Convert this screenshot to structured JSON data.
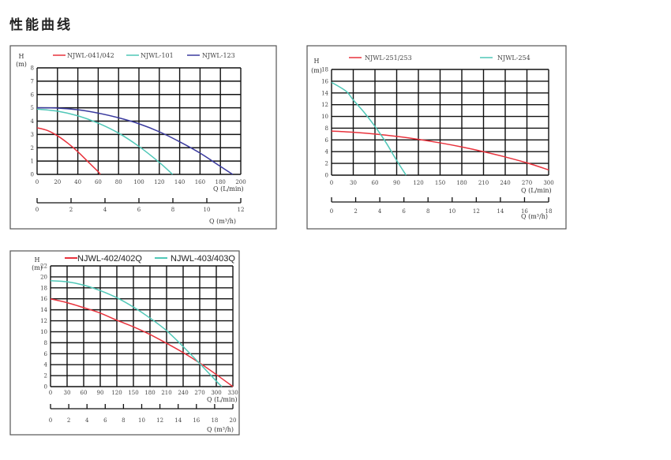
{
  "page_title": "性能曲线",
  "colors": {
    "red": "#e8323c",
    "teal": "#4fc7b7",
    "blue": "#3a3a9e"
  },
  "chart_data": [
    {
      "type": "line",
      "ylabel": "H",
      "yunit": "(m)",
      "xlabel": "Q  (L/min)",
      "x2label": "Q  (m³/h)",
      "xlim": [
        0,
        200
      ],
      "xstep": 20,
      "ylim": [
        0,
        8
      ],
      "ystep": 1,
      "x2lim": [
        0,
        12
      ],
      "x2step": 2,
      "grid": true,
      "legend": "top",
      "series": [
        {
          "name": "NJWL-041/042",
          "color": "#e8323c",
          "x": [
            0,
            10,
            20,
            30,
            40,
            50,
            60,
            62
          ],
          "y": [
            3.5,
            3.3,
            2.9,
            2.35,
            1.7,
            0.95,
            0.2,
            0
          ]
        },
        {
          "name": "NJWL-101",
          "color": "#4fc7b7",
          "x": [
            0,
            20,
            40,
            60,
            80,
            100,
            120,
            133
          ],
          "y": [
            4.9,
            4.75,
            4.4,
            3.85,
            3.1,
            2.1,
            0.9,
            0
          ]
        },
        {
          "name": "NJWL-123",
          "color": "#3a3a9e",
          "x": [
            0,
            20,
            40,
            60,
            80,
            100,
            120,
            140,
            160,
            180,
            192
          ],
          "y": [
            5,
            4.98,
            4.85,
            4.6,
            4.25,
            3.8,
            3.2,
            2.45,
            1.6,
            0.6,
            0
          ]
        }
      ]
    },
    {
      "type": "line",
      "ylabel": "H",
      "yunit": "(m)",
      "xlabel": "Q  (L/min)",
      "x2label": "Q (m³/h)",
      "xlim": [
        0,
        300
      ],
      "xstep": 30,
      "ylim": [
        0,
        18
      ],
      "ystep": 2,
      "x2lim": [
        0,
        18
      ],
      "x2step": 2,
      "grid": true,
      "legend": "top",
      "series": [
        {
          "name": "NJWL-251/253",
          "color": "#e8323c",
          "x": [
            0,
            30,
            60,
            90,
            120,
            150,
            180,
            210,
            240,
            270,
            300
          ],
          "y": [
            7.5,
            7.3,
            7.0,
            6.6,
            6.1,
            5.5,
            4.8,
            4.0,
            3.1,
            2.1,
            0.9
          ]
        },
        {
          "name": "NJWL-254",
          "color": "#4fc7b7",
          "x": [
            0,
            20,
            30,
            45,
            60,
            75,
            90,
            103
          ],
          "y": [
            15.8,
            14.3,
            12.8,
            10.7,
            8.3,
            5.6,
            2.5,
            0
          ]
        }
      ]
    },
    {
      "type": "line",
      "ylabel": "H",
      "yunit": "(m)",
      "xlabel": "Q  (L/min)",
      "x2label": "Q  (m³/h)",
      "xlim": [
        0,
        330
      ],
      "xstep": 30,
      "ylim": [
        0,
        22
      ],
      "ystep": 2,
      "x2lim": [
        0,
        20
      ],
      "x2step": 2,
      "grid": true,
      "legend": "top",
      "series": [
        {
          "name": "NJWL-402/402Q",
          "color": "#e8323c",
          "x": [
            0,
            30,
            60,
            90,
            120,
            150,
            180,
            210,
            240,
            270,
            300,
            330
          ],
          "y": [
            16,
            15.3,
            14.4,
            13.4,
            12.1,
            10.9,
            9.5,
            7.9,
            6.2,
            4.3,
            2.2,
            0
          ]
        },
        {
          "name": "NJWL-403/403Q",
          "color": "#4fc7b7",
          "x": [
            0,
            30,
            60,
            90,
            120,
            150,
            180,
            210,
            240,
            270,
            300,
            310
          ],
          "y": [
            19.3,
            19.1,
            18.5,
            17.5,
            16.2,
            14.5,
            12.5,
            10.2,
            7.3,
            4.2,
            1.0,
            0
          ]
        }
      ]
    }
  ]
}
